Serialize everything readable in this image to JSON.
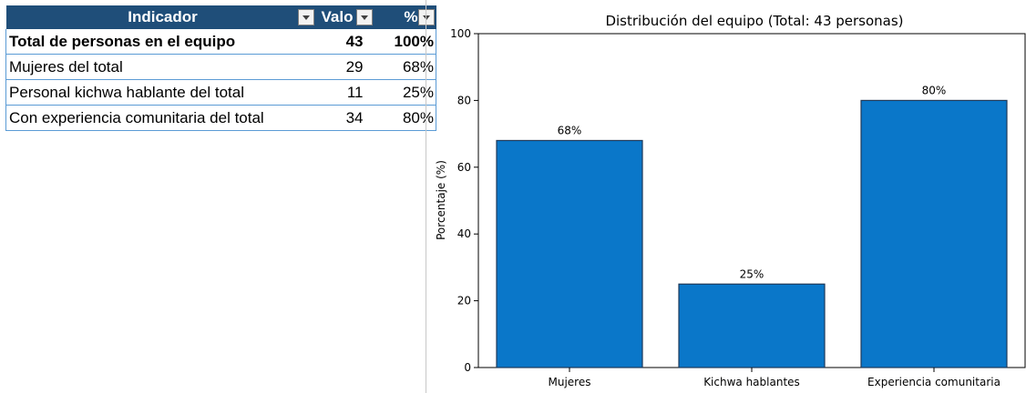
{
  "table": {
    "headers": [
      "Indicador",
      "Valo",
      "%"
    ],
    "rows": [
      {
        "indicador": "Total de personas en el equipo",
        "valor": "43",
        "pct": "100%"
      },
      {
        "indicador": "Mujeres del total",
        "valor": "29",
        "pct": "68%"
      },
      {
        "indicador": "Personal kichwa hablante del total",
        "valor": "11",
        "pct": "25%"
      },
      {
        "indicador": "Con experiencia comunitaria del total",
        "valor": "34",
        "pct": "80%"
      }
    ]
  },
  "chart_data": {
    "type": "bar",
    "title": "Distribución del equipo (Total: 43 personas)",
    "xlabel": "",
    "ylabel": "Porcentaje (%)",
    "categories": [
      "Mujeres",
      "Kichwa hablantes",
      "Experiencia comunitaria"
    ],
    "values": [
      68,
      25,
      80
    ],
    "data_labels": [
      "68%",
      "25%",
      "80%"
    ],
    "ylim": [
      0,
      100
    ],
    "yticks": [
      0,
      20,
      40,
      60,
      80,
      100
    ],
    "grid": false,
    "bar_color": "#0a77c9",
    "bar_edge_color": "#1f3a5a"
  }
}
